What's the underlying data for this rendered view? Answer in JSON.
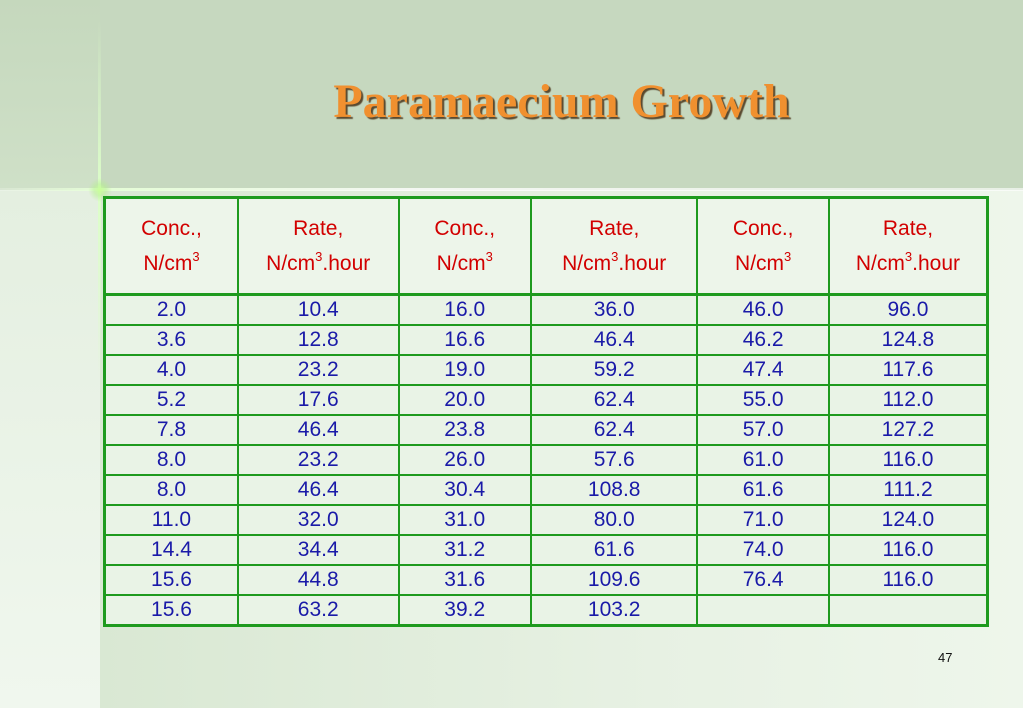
{
  "slide": {
    "title": "Paramaecium Growth",
    "page_number": "47"
  },
  "table": {
    "headers": [
      {
        "line1": "Conc.,",
        "line2": "N/cm",
        "sup": "3",
        "suffix": ""
      },
      {
        "line1": "Rate,",
        "line2": "N/cm",
        "sup": "3",
        "suffix": ".hour"
      },
      {
        "line1": "Conc.,",
        "line2": "N/cm",
        "sup": "3",
        "suffix": ""
      },
      {
        "line1": "Rate,",
        "line2": "N/cm",
        "sup": "3",
        "suffix": ".hour"
      },
      {
        "line1": "Conc.,",
        "line2": "N/cm",
        "sup": "3",
        "suffix": ""
      },
      {
        "line1": "Rate,",
        "line2": "N/cm",
        "sup": "3",
        "suffix": ".hour"
      }
    ],
    "rows": [
      [
        "2.0",
        "10.4",
        "16.0",
        "36.0",
        "46.0",
        "96.0"
      ],
      [
        "3.6",
        "12.8",
        "16.6",
        "46.4",
        "46.2",
        "124.8"
      ],
      [
        "4.0",
        "23.2",
        "19.0",
        "59.2",
        "47.4",
        "117.6"
      ],
      [
        "5.2",
        "17.6",
        "20.0",
        "62.4",
        "55.0",
        "112.0"
      ],
      [
        "7.8",
        "46.4",
        "23.8",
        "62.4",
        "57.0",
        "127.2"
      ],
      [
        "8.0",
        "23.2",
        "26.0",
        "57.6",
        "61.0",
        "116.0"
      ],
      [
        "8.0",
        "46.4",
        "30.4",
        "108.8",
        "61.6",
        "111.2"
      ],
      [
        "11.0",
        "32.0",
        "31.0",
        "80.0",
        "71.0",
        "124.0"
      ],
      [
        "14.4",
        "34.4",
        "31.2",
        "61.6",
        "74.0",
        "116.0"
      ],
      [
        "15.6",
        "44.8",
        "31.6",
        "109.6",
        "76.4",
        "116.0"
      ],
      [
        "15.6",
        "63.2",
        "39.2",
        "103.2",
        "",
        ""
      ]
    ]
  },
  "colors": {
    "title": "#f0902f",
    "header_text": "#d20000",
    "cell_text": "#1a1aa8",
    "grid": "#1e9a1e"
  }
}
